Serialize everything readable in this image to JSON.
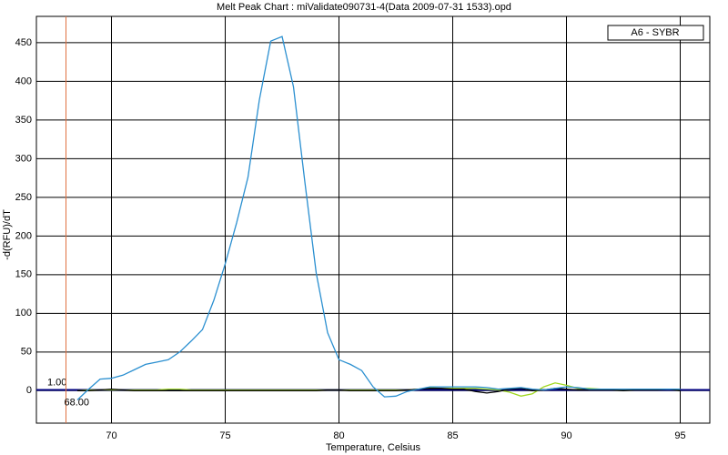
{
  "chart_data": {
    "type": "line",
    "title": "Melt Peak Chart : miValidate090731-4(Data 2009-07-31 1533).opd",
    "x_label": "Temperature, Celsius",
    "y_label": "-d(RFU)/dT",
    "xlim": [
      66.7,
      96.3
    ],
    "ylim": [
      -42,
      484
    ],
    "xticks": [
      70,
      75,
      80,
      85,
      90,
      95
    ],
    "yticks": [
      0,
      50,
      100,
      150,
      200,
      250,
      300,
      350,
      400,
      450
    ],
    "grid": true,
    "legend": "top-right",
    "x": [
      68.5,
      69,
      69.5,
      70,
      70.5,
      71,
      71.5,
      72,
      72.5,
      73,
      73.5,
      74,
      74.5,
      75,
      75.5,
      76,
      76.5,
      77,
      77.5,
      78,
      78.5,
      79,
      79.5,
      80,
      80.5,
      81,
      81.5,
      82,
      82.5,
      83,
      83.5,
      84,
      84.5,
      85,
      85.5,
      86,
      86.5,
      87,
      87.5,
      88,
      88.5,
      89,
      89.5,
      90,
      90.5,
      91,
      91.5,
      92,
      92.5,
      93,
      93.5,
      94,
      94.5,
      95
    ],
    "series": [
      {
        "color": "#a0d820",
        "values": [
          0,
          1,
          1,
          1,
          1,
          1,
          1,
          1,
          2,
          2,
          1,
          1,
          1,
          1,
          1,
          1,
          1,
          1,
          1,
          1,
          1,
          1,
          1,
          1,
          1,
          1,
          1,
          1,
          1,
          1,
          2,
          4,
          3,
          3,
          3,
          3,
          2,
          1,
          -2,
          -7,
          -4,
          5,
          10,
          7,
          3,
          3,
          2,
          2,
          2,
          2,
          2,
          2,
          2,
          2
        ]
      },
      {
        "color": "#000000",
        "values": [
          0,
          0,
          1,
          2,
          1,
          0,
          0,
          0,
          0,
          0,
          0,
          0,
          0,
          0,
          0,
          0,
          0,
          0,
          0,
          0,
          0,
          0,
          1,
          1,
          0,
          0,
          0,
          0,
          0,
          1,
          2,
          3,
          3,
          2,
          2,
          -1,
          -3,
          -1,
          2,
          3,
          0,
          1,
          3,
          2,
          1,
          1,
          1,
          1,
          0,
          1,
          1,
          1,
          2,
          0
        ]
      },
      {
        "name": "A6 - SYBR",
        "color": "#2a8fd0",
        "values": [
          -12,
          2,
          15,
          16,
          20,
          27,
          34,
          37,
          40,
          50,
          64,
          79,
          117,
          164,
          217,
          276,
          376,
          452,
          458,
          393,
          270,
          152,
          75,
          40,
          34,
          26,
          5,
          -8,
          -7,
          -1,
          2,
          5,
          5,
          5,
          5,
          5,
          4,
          2,
          3,
          4,
          2,
          1,
          3,
          5,
          4,
          2,
          2,
          2,
          2,
          2,
          2,
          2,
          2,
          2
        ]
      }
    ],
    "threshold": {
      "value": 1,
      "label": "1.00",
      "color": "#00007f"
    },
    "cursor": {
      "value": 68,
      "label": "68.00",
      "color": "#e07040"
    }
  }
}
